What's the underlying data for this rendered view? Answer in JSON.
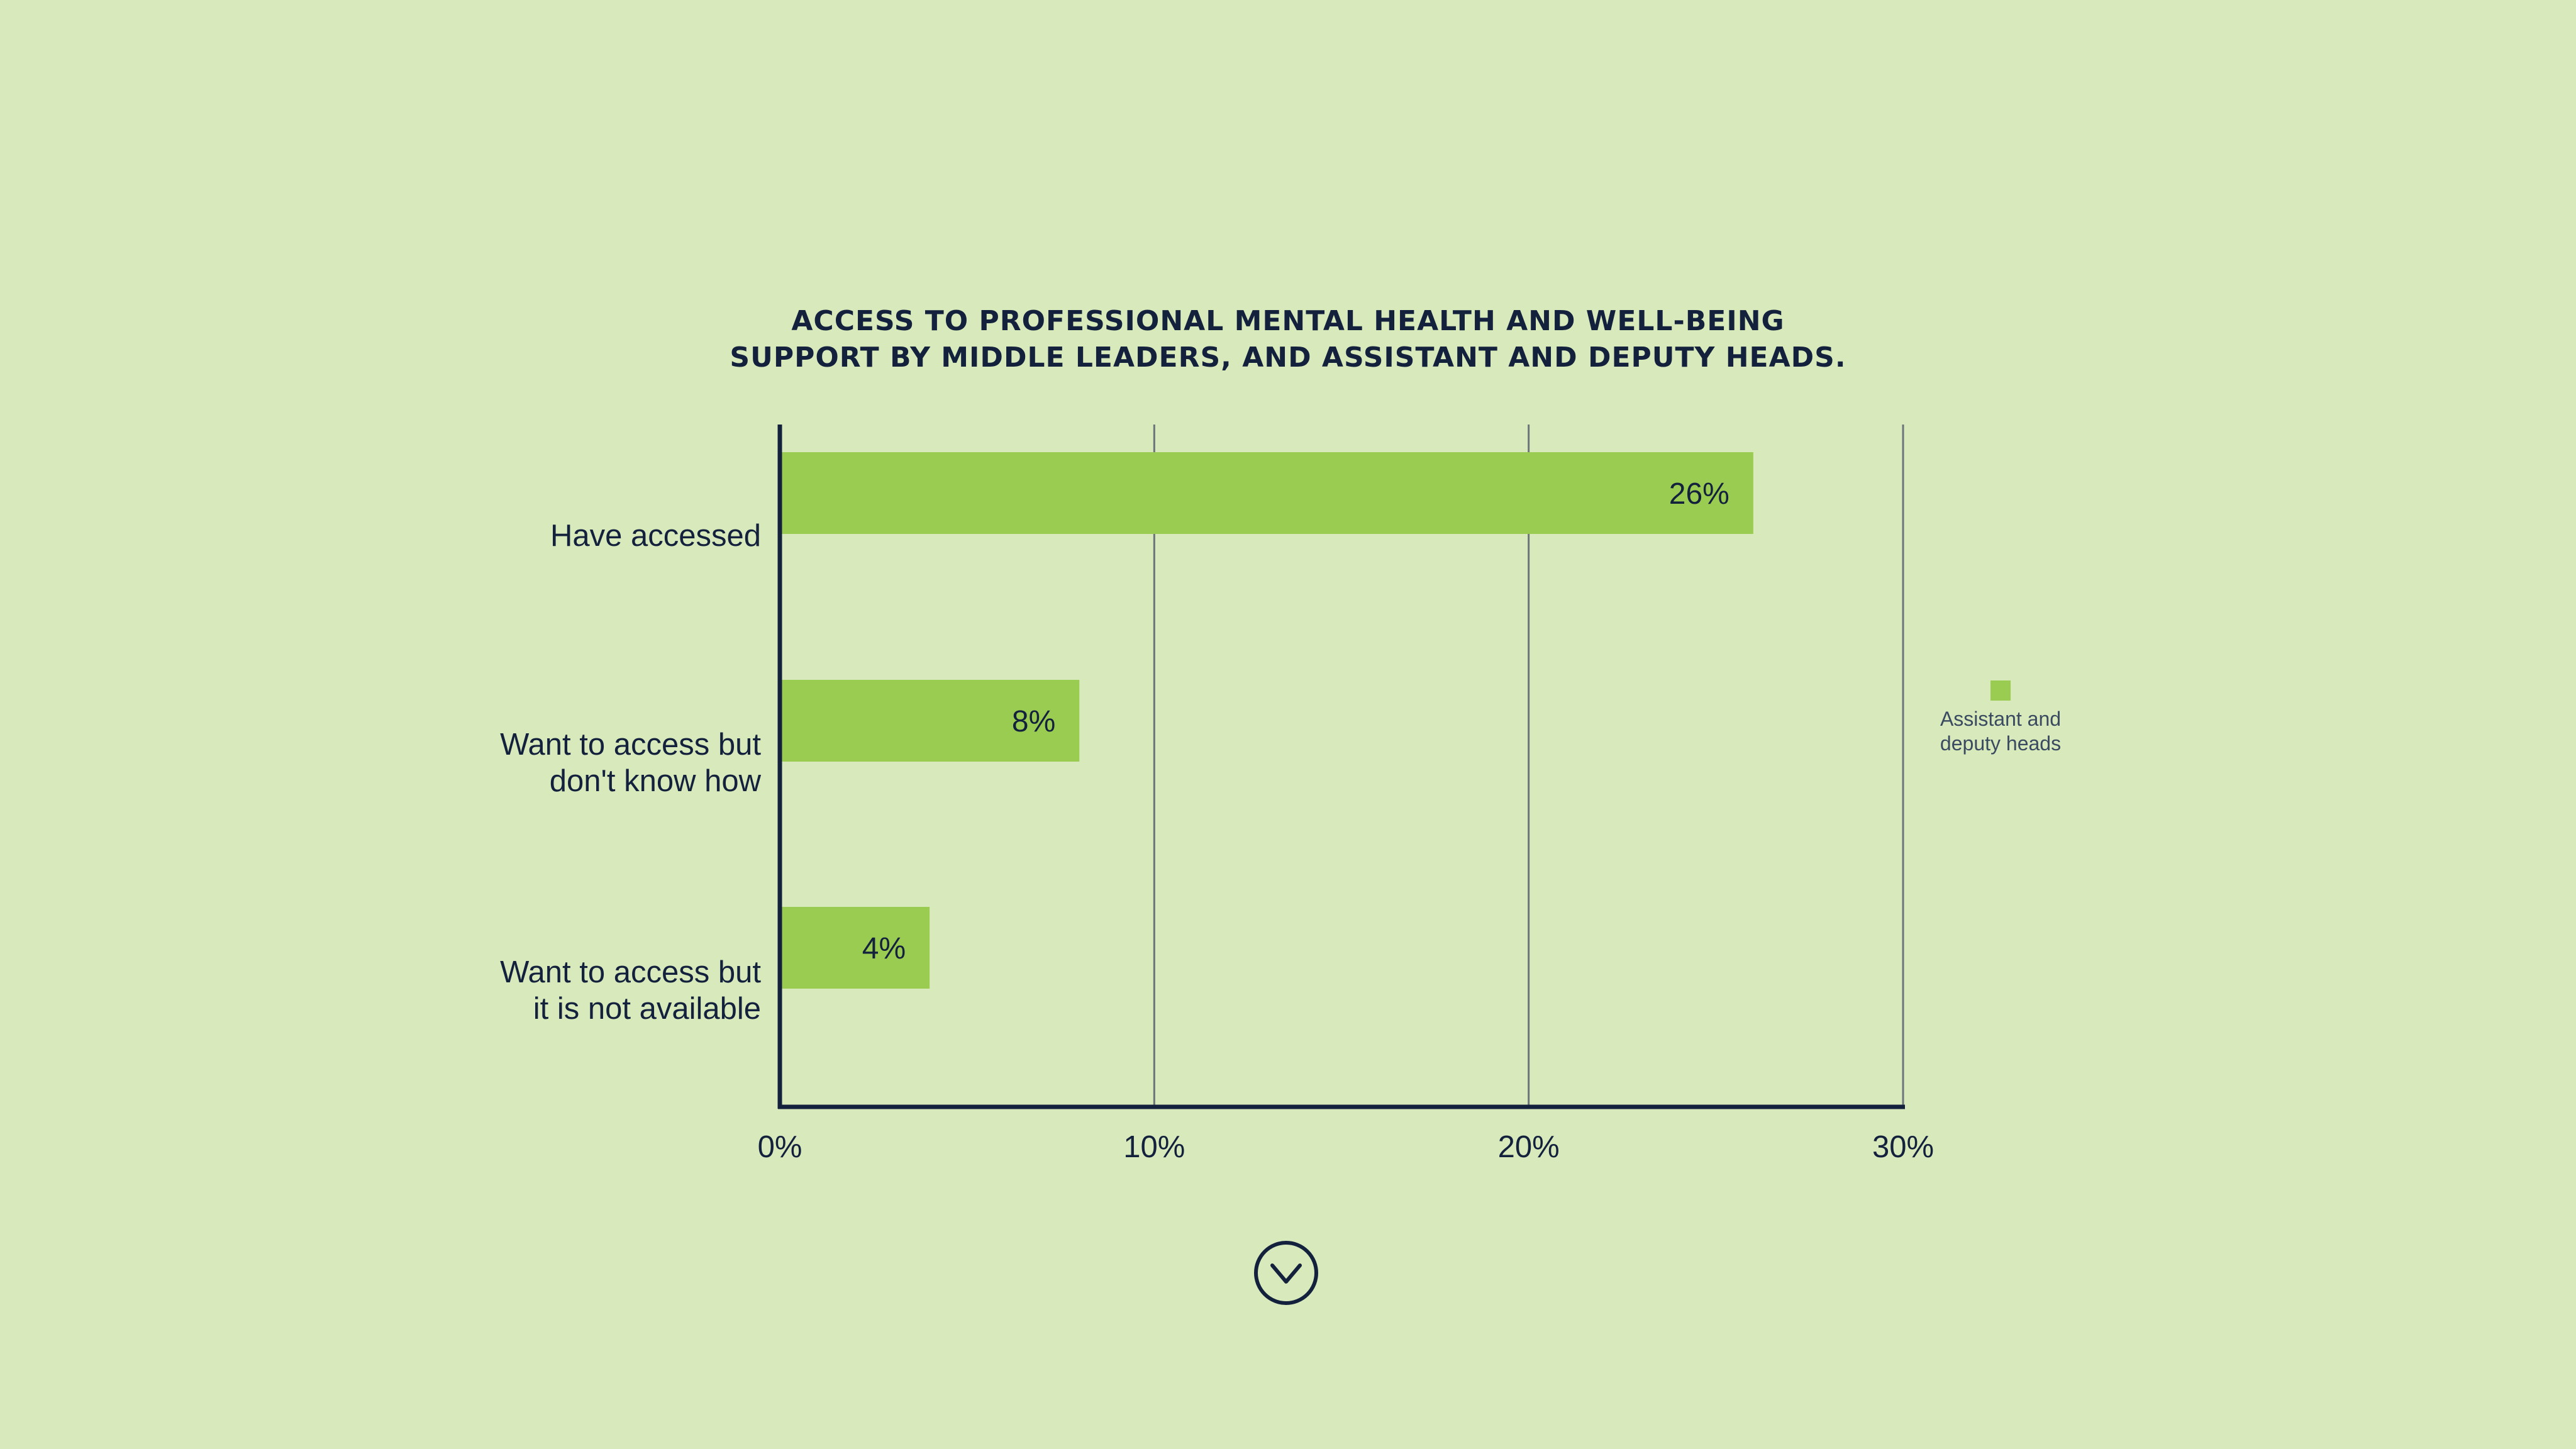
{
  "colors": {
    "background": "#d8eabc",
    "bar": "#9bcc52",
    "text": "#14213d",
    "axis": "#14213d",
    "grid": "#6b7478"
  },
  "chart_data": {
    "type": "bar",
    "orientation": "horizontal",
    "title_lines": [
      "ACCESS TO PROFESSIONAL MENTAL HEALTH AND WELL-BEING",
      "SUPPORT BY MIDDLE LEADERS, AND ASSISTANT AND DEPUTY HEADS."
    ],
    "categories": [
      [
        "Have accessed"
      ],
      [
        "Want to access but",
        "don't know how"
      ],
      [
        "Want to access but",
        "it is not available"
      ]
    ],
    "series": [
      {
        "name": [
          "Assistant and",
          "deputy heads"
        ],
        "values": [
          26,
          8,
          4
        ],
        "data_labels": [
          "26%",
          "8%",
          "4%"
        ],
        "color": "#9bcc52"
      }
    ],
    "xlim": [
      0,
      30
    ],
    "xticks": [
      0,
      10,
      20,
      30
    ],
    "xtick_labels": [
      "0%",
      "10%",
      "20%",
      "30%"
    ],
    "grid": "vertical",
    "legend_position": "right"
  },
  "navigation": {
    "icon": "chevron-down-circle-icon"
  }
}
